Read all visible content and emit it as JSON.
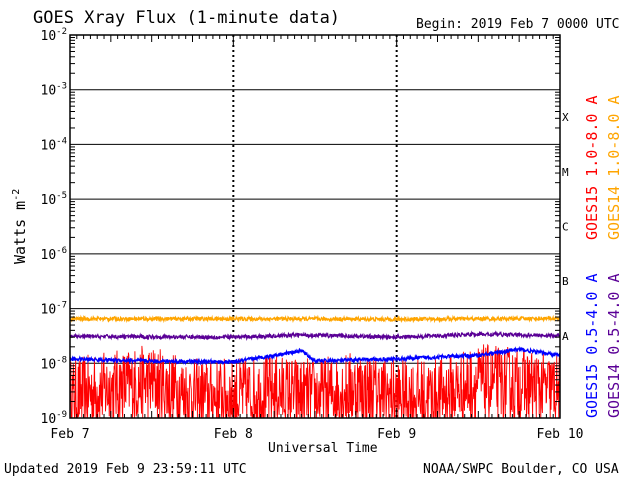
{
  "chart_data": {
    "type": "line",
    "title": "GOES Xray Flux (1-minute data)",
    "begin": "Begin:  2019 Feb 7 0000 UTC",
    "xlabel": "Universal Time",
    "ylabel": "Watts m",
    "ylabel_sup": "-2",
    "y_scale": "log",
    "ylim": [
      1e-09,
      0.01
    ],
    "xlim": [
      "2019-02-07T00:00",
      "2019-02-10T00:00"
    ],
    "x_tick_labels": [
      "Feb 7",
      "Feb 8",
      "Feb 9",
      "Feb 10"
    ],
    "y_tick_labels": [
      {
        "base": "10",
        "exp": "-9"
      },
      {
        "base": "10",
        "exp": "-8"
      },
      {
        "base": "10",
        "exp": "-7"
      },
      {
        "base": "10",
        "exp": "-6"
      },
      {
        "base": "10",
        "exp": "-5"
      },
      {
        "base": "10",
        "exp": "-4"
      },
      {
        "base": "10",
        "exp": "-3"
      },
      {
        "base": "10",
        "exp": "-2"
      }
    ],
    "flare_classes": [
      "A",
      "B",
      "C",
      "M",
      "X"
    ],
    "series": [
      {
        "name": "GOES15 1.0-8.0 A",
        "color": "#ff0000",
        "band": "long",
        "x": [
          "2019-02-07T00:00",
          "2019-02-07T06:00",
          "2019-02-07T12:00",
          "2019-02-07T18:00",
          "2019-02-08T00:00",
          "2019-02-08T06:00",
          "2019-02-08T12:00",
          "2019-02-08T18:00",
          "2019-02-09T00:00",
          "2019-02-09T06:00",
          "2019-02-09T12:00",
          "2019-02-09T18:00",
          "2019-02-10T00:00"
        ],
        "y": [
          2.5e-09,
          3.5e-09,
          4.5e-09,
          2.5e-09,
          2.5e-09,
          3e-09,
          2.5e-09,
          3.5e-09,
          2.5e-09,
          2.5e-09,
          4.5e-09,
          4e-09,
          3e-09
        ]
      },
      {
        "name": "GOES14 1.0-8.0 A",
        "color": "#ffa500",
        "band": "long",
        "x": [
          "2019-02-07T00:00",
          "2019-02-08T00:00",
          "2019-02-09T00:00",
          "2019-02-10T00:00"
        ],
        "y": [
          6.5e-08,
          6.5e-08,
          6.4e-08,
          6.6e-08
        ]
      },
      {
        "name": "GOES15 0.5-4.0 A",
        "color": "#0000ff",
        "band": "short",
        "x": [
          "2019-02-07T00:00",
          "2019-02-07T12:00",
          "2019-02-08T00:00",
          "2019-02-08T10:00",
          "2019-02-08T12:00",
          "2019-02-09T00:00",
          "2019-02-09T12:00",
          "2019-02-09T18:00",
          "2019-02-10T00:00"
        ],
        "y": [
          1.2e-08,
          1.1e-08,
          1.05e-08,
          1.7e-08,
          1.1e-08,
          1.2e-08,
          1.4e-08,
          1.8e-08,
          1.4e-08
        ]
      },
      {
        "name": "GOES14 0.5-4.0 A",
        "color": "#5a0096",
        "band": "short",
        "x": [
          "2019-02-07T00:00",
          "2019-02-08T00:00",
          "2019-02-08T10:00",
          "2019-02-09T00:00",
          "2019-02-09T12:00",
          "2019-02-10T00:00"
        ],
        "y": [
          3.1e-08,
          3e-08,
          3.3e-08,
          3e-08,
          3.4e-08,
          3.2e-08
        ]
      }
    ],
    "grid": true
  },
  "footer": {
    "updated": "Updated 2019 Feb  9 23:59:11 UTC",
    "credit": "NOAA/SWPC Boulder, CO USA"
  }
}
